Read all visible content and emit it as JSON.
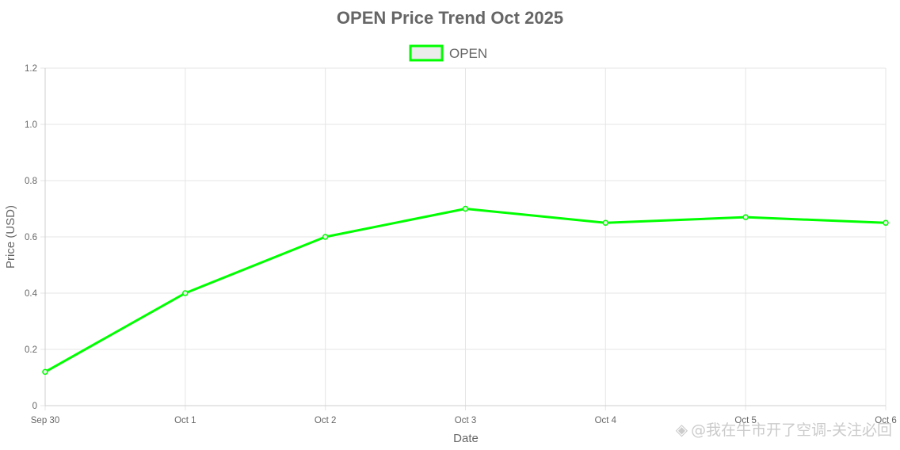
{
  "chart_data": {
    "type": "line",
    "title": "OPEN Price Trend Oct 2025",
    "xlabel": "Date",
    "ylabel": "Price (USD)",
    "categories": [
      "Sep 30",
      "Oct 1",
      "Oct 2",
      "Oct 3",
      "Oct 4",
      "Oct 5",
      "Oct 6"
    ],
    "series": [
      {
        "name": "OPEN",
        "color": "#00ff00",
        "values": [
          0.12,
          0.4,
          0.6,
          0.7,
          0.65,
          0.67,
          0.65
        ]
      }
    ],
    "ylim": [
      0,
      1.2
    ],
    "yticks": [
      "0",
      "0.2",
      "0.4",
      "0.6",
      "0.8",
      "1.0",
      "1.2"
    ],
    "grid": true,
    "legend_position": "top-center"
  },
  "watermark": {
    "logo_icon": "binance-diamond-icon",
    "text": "@我在牛市开了空调-关注必回"
  }
}
